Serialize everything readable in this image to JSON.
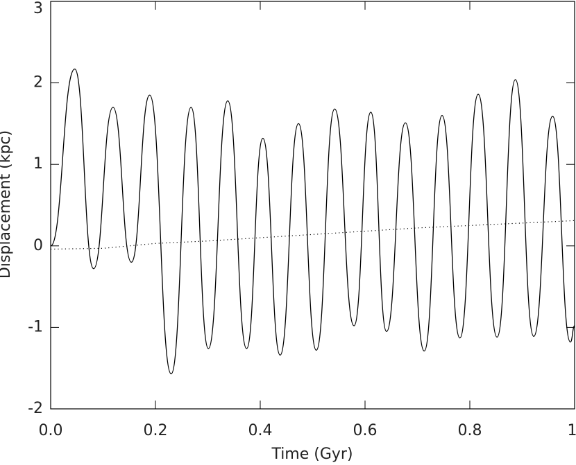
{
  "chart_data": {
    "type": "line",
    "xlabel": "Time (Gyr)",
    "ylabel": "Displacement (kpc)",
    "xlim": [
      0,
      1
    ],
    "ylim": [
      -2,
      3
    ],
    "xticks": [
      {
        "value": 0,
        "label": "0.0"
      },
      {
        "value": 0.2,
        "label": "0.2"
      },
      {
        "value": 0.4,
        "label": "0.4"
      },
      {
        "value": 0.6,
        "label": "0.6"
      },
      {
        "value": 0.8,
        "label": "0.8"
      },
      {
        "value": 1,
        "label": "1."
      }
    ],
    "yticks": [
      -2,
      -1,
      0,
      1,
      2,
      3
    ],
    "series": [
      {
        "color": "#000000",
        "linestyle": "solid",
        "x": [
          0,
          0.046,
          0.082,
          0.119,
          0.154,
          0.189,
          0.23,
          0.268,
          0.301,
          0.338,
          0.374,
          0.405,
          0.438,
          0.473,
          0.507,
          0.542,
          0.579,
          0.611,
          0.641,
          0.677,
          0.713,
          0.747,
          0.781,
          0.816,
          0.852,
          0.887,
          0.922,
          0.958,
          0.992,
          1.0
        ],
        "values": [
          0,
          2.17,
          -0.28,
          1.7,
          -0.2,
          1.85,
          -1.57,
          1.7,
          -1.26,
          1.78,
          -1.26,
          1.32,
          -1.34,
          1.5,
          -1.28,
          1.68,
          -0.98,
          1.64,
          -1.05,
          1.51,
          -1.29,
          1.6,
          -1.13,
          1.86,
          -1.12,
          2.04,
          -1.11,
          1.59,
          -1.18,
          -0.98
        ]
      },
      {
        "color": "#000000",
        "linestyle": "dotted",
        "x": [
          0,
          0.1,
          0.2,
          0.3,
          0.4,
          0.5,
          0.6,
          0.7,
          0.8,
          0.9,
          1.0
        ],
        "values": [
          -0.04,
          -0.03,
          0.03,
          0.06,
          0.1,
          0.14,
          0.18,
          0.22,
          0.25,
          0.28,
          0.31
        ]
      }
    ]
  }
}
